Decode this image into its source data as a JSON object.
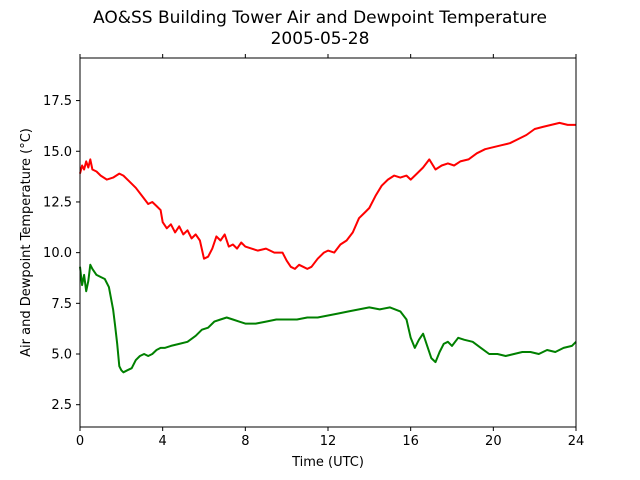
{
  "chart_data": {
    "type": "line",
    "title": "AO&SS Building Tower Air and Dewpoint Temperature",
    "subtitle": "2005-05-28",
    "xlabel": "Time (UTC)",
    "ylabel": "Air and Dewpoint Temperature (°C)",
    "xlim": [
      0,
      24
    ],
    "ylim": [
      1.4,
      19.6
    ],
    "xticks": [
      0,
      4,
      8,
      12,
      16,
      20,
      24
    ],
    "yticks": [
      2.5,
      5.0,
      7.5,
      10.0,
      12.5,
      15.0,
      17.5
    ],
    "ytick_labels": [
      "2.5",
      "5.0",
      "7.5",
      "10.0",
      "12.5",
      "15.0",
      "17.5"
    ],
    "grid": false,
    "series": [
      {
        "color": "#ff0000",
        "x": [
          0,
          0.1,
          0.2,
          0.3,
          0.4,
          0.5,
          0.6,
          0.8,
          1.0,
          1.3,
          1.6,
          1.9,
          2.1,
          2.4,
          2.7,
          3.0,
          3.3,
          3.5,
          3.7,
          3.9,
          4.0,
          4.2,
          4.4,
          4.6,
          4.8,
          5.0,
          5.2,
          5.4,
          5.6,
          5.8,
          6.0,
          6.2,
          6.4,
          6.6,
          6.8,
          7.0,
          7.2,
          7.4,
          7.6,
          7.8,
          8.0,
          8.3,
          8.6,
          9.0,
          9.4,
          9.8,
          10.0,
          10.2,
          10.4,
          10.6,
          10.8,
          11.0,
          11.2,
          11.5,
          11.8,
          12.0,
          12.3,
          12.6,
          12.9,
          13.2,
          13.5,
          13.8,
          14.0,
          14.3,
          14.6,
          14.9,
          15.2,
          15.5,
          15.8,
          16.0,
          16.3,
          16.6,
          16.9,
          17.2,
          17.5,
          17.8,
          18.1,
          18.4,
          18.8,
          19.2,
          19.6,
          20.0,
          20.4,
          20.8,
          21.2,
          21.6,
          22.0,
          22.4,
          22.8,
          23.2,
          23.6,
          24.0
        ],
        "values": [
          13.9,
          14.3,
          14.1,
          14.5,
          14.2,
          14.6,
          14.1,
          14.0,
          13.8,
          13.6,
          13.7,
          13.9,
          13.8,
          13.5,
          13.2,
          12.8,
          12.4,
          12.5,
          12.3,
          12.1,
          11.5,
          11.2,
          11.4,
          11.0,
          11.3,
          10.9,
          11.1,
          10.7,
          10.9,
          10.6,
          9.7,
          9.8,
          10.2,
          10.8,
          10.6,
          10.9,
          10.3,
          10.4,
          10.2,
          10.5,
          10.3,
          10.2,
          10.1,
          10.2,
          10.0,
          10.0,
          9.6,
          9.3,
          9.2,
          9.4,
          9.3,
          9.2,
          9.3,
          9.7,
          10.0,
          10.1,
          10.0,
          10.4,
          10.6,
          11.0,
          11.7,
          12.0,
          12.2,
          12.8,
          13.3,
          13.6,
          13.8,
          13.7,
          13.8,
          13.6,
          13.9,
          14.2,
          14.6,
          14.1,
          14.3,
          14.4,
          14.3,
          14.5,
          14.6,
          14.9,
          15.1,
          15.2,
          15.3,
          15.4,
          15.6,
          15.8,
          16.1,
          16.2,
          16.3,
          16.4,
          16.3,
          16.3
        ]
      },
      {
        "color": "#008000",
        "x": [
          0,
          0.1,
          0.2,
          0.3,
          0.4,
          0.5,
          0.6,
          0.8,
          1.0,
          1.2,
          1.4,
          1.6,
          1.7,
          1.8,
          1.9,
          2.0,
          2.1,
          2.3,
          2.5,
          2.7,
          2.9,
          3.1,
          3.3,
          3.5,
          3.7,
          3.9,
          4.1,
          4.4,
          4.8,
          5.2,
          5.6,
          5.9,
          6.2,
          6.5,
          6.8,
          7.1,
          7.4,
          7.7,
          8.0,
          8.5,
          9.0,
          9.5,
          10.0,
          10.5,
          11.0,
          11.5,
          12.0,
          12.5,
          13.0,
          13.5,
          14.0,
          14.5,
          15.0,
          15.5,
          15.8,
          16.0,
          16.2,
          16.4,
          16.6,
          16.8,
          17.0,
          17.2,
          17.4,
          17.6,
          17.8,
          18.0,
          18.3,
          18.6,
          19.0,
          19.4,
          19.8,
          20.2,
          20.6,
          21.0,
          21.4,
          21.8,
          22.2,
          22.6,
          23.0,
          23.4,
          23.8,
          24.0
        ],
        "values": [
          9.3,
          8.4,
          8.9,
          8.1,
          8.6,
          9.4,
          9.2,
          8.9,
          8.8,
          8.7,
          8.3,
          7.2,
          6.4,
          5.5,
          4.4,
          4.2,
          4.1,
          4.2,
          4.3,
          4.7,
          4.9,
          5.0,
          4.9,
          5.0,
          5.2,
          5.3,
          5.3,
          5.4,
          5.5,
          5.6,
          5.9,
          6.2,
          6.3,
          6.6,
          6.7,
          6.8,
          6.7,
          6.6,
          6.5,
          6.5,
          6.6,
          6.7,
          6.7,
          6.7,
          6.8,
          6.8,
          6.9,
          7.0,
          7.1,
          7.2,
          7.3,
          7.2,
          7.3,
          7.1,
          6.7,
          5.8,
          5.3,
          5.7,
          6.0,
          5.4,
          4.8,
          4.6,
          5.1,
          5.5,
          5.6,
          5.4,
          5.8,
          5.7,
          5.6,
          5.3,
          5.0,
          5.0,
          4.9,
          5.0,
          5.1,
          5.1,
          5.0,
          5.2,
          5.1,
          5.3,
          5.4,
          5.6
        ]
      }
    ]
  }
}
